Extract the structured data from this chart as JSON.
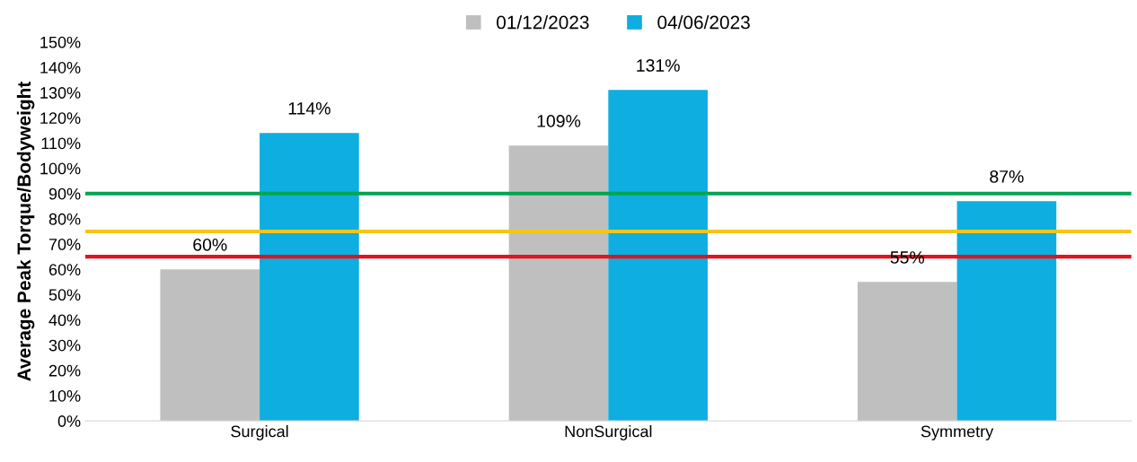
{
  "chart_data": {
    "type": "bar",
    "ylabel": "Average Peak Torque/Bodyweight",
    "categories": [
      "Surgical",
      "NonSurgical",
      "Symmetry"
    ],
    "series": [
      {
        "name": "01/12/2023",
        "color": "#bfbfbf",
        "values": [
          60,
          109,
          55
        ],
        "value_labels": [
          "60%",
          "109%",
          "55%"
        ]
      },
      {
        "name": "04/06/2023",
        "color": "#0eaee0",
        "values": [
          114,
          131,
          87
        ],
        "value_labels": [
          "114%",
          "131%",
          "87%"
        ]
      }
    ],
    "ylim": [
      0,
      150
    ],
    "yticks": [
      {
        "value": 0,
        "label": "0%"
      },
      {
        "value": 10,
        "label": "10%"
      },
      {
        "value": 20,
        "label": "20%"
      },
      {
        "value": 30,
        "label": "30%"
      },
      {
        "value": 40,
        "label": "40%"
      },
      {
        "value": 50,
        "label": "50%"
      },
      {
        "value": 60,
        "label": "60%"
      },
      {
        "value": 70,
        "label": "70%"
      },
      {
        "value": 80,
        "label": "80%"
      },
      {
        "value": 90,
        "label": "90%"
      },
      {
        "value": 100,
        "label": "100%"
      },
      {
        "value": 110,
        "label": "110%"
      },
      {
        "value": 120,
        "label": "120%"
      },
      {
        "value": 130,
        "label": "130%"
      },
      {
        "value": 140,
        "label": "140%"
      },
      {
        "value": 150,
        "label": "150%"
      }
    ],
    "ref_lines": [
      {
        "axis": "y",
        "value": 90,
        "color": "#00a550"
      },
      {
        "axis": "y",
        "value": 75,
        "color": "#f5c518"
      },
      {
        "axis": "y",
        "value": 65,
        "color": "#e0141e"
      }
    ],
    "legend": "top"
  }
}
